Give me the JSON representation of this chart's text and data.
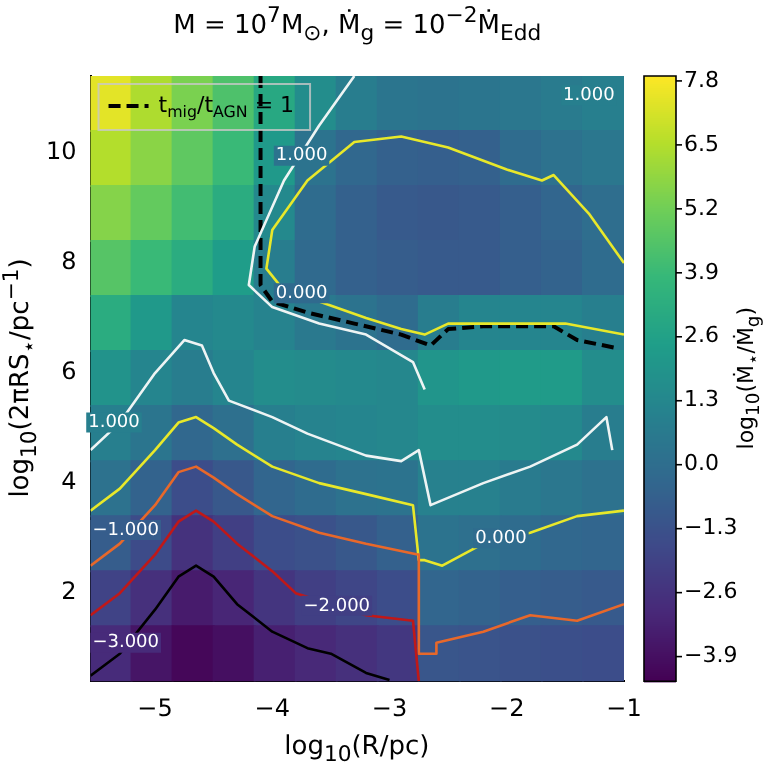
{
  "chart_data": {
    "type": "heatmap",
    "title": "M = 10$^{7}$M$_{⊙}$, Ṁ$_{g}$ = 10$^{−2}$Ṁ$_{Edd}$",
    "xlabel": "log$_{10}$(R/pc)",
    "ylabel": "log$_{10}$(2πRS$_{⋆}$/pc$^{−1}$)",
    "clabel": "log$_{10}$(Ṁ$_{⋆}$/Ṁ$_{g}$)",
    "x": [
      -5.375,
      -5.025,
      -4.675,
      -4.325,
      -3.975,
      -3.625,
      -3.275,
      -2.925,
      -2.575,
      -2.225,
      -1.875,
      -1.525,
      -1.175
    ],
    "y": [
      10.9,
      9.9,
      8.9,
      7.9,
      6.9,
      5.9,
      4.9,
      3.9,
      2.9,
      1.9,
      0.9
    ],
    "cells": [
      [
        7.4,
        6.4,
        5.4,
        4.4,
        3.0,
        1.6,
        0.8,
        0.4,
        0.3,
        0.4,
        0.5,
        0.7,
        0.9
      ],
      [
        6.5,
        5.7,
        4.8,
        3.9,
        2.2,
        0.3,
        -0.3,
        -0.6,
        -0.7,
        -0.6,
        -0.1,
        0.2,
        0.5
      ],
      [
        5.6,
        4.9,
        4.1,
        3.2,
        1.4,
        -0.1,
        -0.6,
        -0.9,
        -1.0,
        -0.9,
        -0.7,
        -0.4,
        0.0
      ],
      [
        4.6,
        3.9,
        3.2,
        2.4,
        0.8,
        -0.2,
        -0.6,
        -0.8,
        -0.9,
        -0.9,
        -0.7,
        -0.5,
        -0.1
      ],
      [
        3.2,
        2.2,
        1.2,
        1.4,
        1.1,
        0.6,
        0.3,
        -0.1,
        0.8,
        1.2,
        1.2,
        1.2,
        0.9
      ],
      [
        1.9,
        1.2,
        0.8,
        1.2,
        1.6,
        1.5,
        1.4,
        1.3,
        2.0,
        2.2,
        2.3,
        2.3,
        1.6
      ],
      [
        0.9,
        0.4,
        -0.3,
        0.1,
        0.9,
        1.1,
        1.2,
        1.3,
        1.6,
        1.6,
        1.5,
        1.4,
        0.8
      ],
      [
        0.2,
        -0.5,
        -1.5,
        -1.0,
        -0.4,
        -0.1,
        0.2,
        0.3,
        1.0,
        1.0,
        0.7,
        0.5,
        0.2
      ],
      [
        -0.8,
        -1.6,
        -2.6,
        -2.1,
        -1.5,
        -1.3,
        -1.0,
        -0.6,
        0.3,
        0.1,
        -0.1,
        -0.3,
        -0.4
      ],
      [
        -1.9,
        -2.7,
        -3.5,
        -3.1,
        -2.5,
        -2.1,
        -1.8,
        -1.5,
        -0.4,
        -0.5,
        -0.7,
        -0.8,
        -0.9
      ],
      [
        -2.9,
        -3.7,
        -4.2,
        -3.9,
        -3.3,
        -3.0,
        -2.7,
        -2.4,
        -1.1,
        -1.2,
        -1.3,
        -1.4,
        -1.5
      ]
    ],
    "clim": [
      -4.4,
      7.9
    ],
    "cticks": [
      7.8,
      6.5,
      5.2,
      3.9,
      2.6,
      1.3,
      {
        "value": 0,
        "label": "0.0"
      },
      -1.3,
      -2.6,
      -3.9
    ],
    "xlim": [
      -5.55,
      -1
    ],
    "xticks": [
      -5,
      -4,
      -3,
      -2,
      -1
    ],
    "ylim": [
      0.4,
      11.4
    ],
    "yticks": [
      2,
      4,
      6,
      8,
      10
    ],
    "series": [
      {
        "type": "line",
        "color": "#000000",
        "x": [
          -5.55,
          -5.3,
          -5.0,
          -4.8,
          -4.65,
          -4.5,
          -4.3,
          -4.0,
          -3.7,
          -3.5,
          -3.2,
          -3.0
        ],
        "values": [
          0.5,
          0.9,
          1.7,
          2.3,
          2.5,
          2.3,
          1.8,
          1.3,
          1.0,
          0.9,
          0.55,
          0.42
        ]
      },
      {
        "type": "line",
        "color": "#c01818",
        "x": [
          -5.55,
          -5.3,
          -5.0,
          -4.8,
          -4.65,
          -4.5,
          -4.3,
          -4.0,
          -3.8,
          -3.2,
          -2.8,
          -2.75
        ],
        "values": [
          1.6,
          2.0,
          2.7,
          3.3,
          3.5,
          3.3,
          2.9,
          2.4,
          2.0,
          1.6,
          1.5,
          0.4
        ]
      },
      {
        "type": "line",
        "color": "#e8682a",
        "x": [
          -5.55,
          -5.3,
          -5.0,
          -4.8,
          -4.65,
          -4.5,
          -4.3,
          -4.0,
          -3.6,
          -3.2,
          -2.75,
          -2.75,
          -2.6,
          -2.6,
          -2.2,
          -1.8,
          -1.4,
          -1.0
        ],
        "values": [
          2.5,
          2.9,
          3.6,
          4.2,
          4.3,
          4.1,
          3.8,
          3.4,
          3.1,
          2.9,
          2.7,
          0.9,
          0.9,
          1.1,
          1.3,
          1.6,
          1.5,
          1.8
        ]
      },
      {
        "type": "line",
        "color": "#e8e82a",
        "x": [
          -5.55,
          -5.3,
          -5.0,
          -4.8,
          -4.65,
          -4.5,
          -4.3,
          -4.0,
          -3.6,
          -3.2,
          -2.8,
          -2.75,
          -2.7,
          -2.55,
          -2.2,
          -1.8,
          -1.4,
          -1.0
        ],
        "values": [
          3.5,
          3.9,
          4.6,
          5.1,
          5.2,
          5.0,
          4.7,
          4.3,
          4.0,
          3.8,
          3.6,
          2.6,
          2.6,
          2.5,
          2.9,
          3.1,
          3.4,
          3.5
        ]
      },
      {
        "type": "line",
        "color": "#eef4f4",
        "x": [
          -5.55,
          -5.3,
          -5.0,
          -4.75,
          -4.6,
          -4.5,
          -4.37,
          -4.0,
          -3.7,
          -3.2,
          -2.9,
          -2.75,
          -2.65,
          -2.2,
          -1.8,
          -1.4,
          -1.15,
          -1.1
        ],
        "values": [
          4.6,
          5.1,
          6.0,
          6.6,
          6.5,
          6.0,
          5.5,
          5.2,
          4.9,
          4.5,
          4.4,
          4.6,
          3.6,
          4.0,
          4.3,
          4.7,
          5.2,
          4.6
        ]
      },
      {
        "type": "line",
        "color": "#eef4f4",
        "x": [
          -3.3,
          -3.6,
          -3.9,
          -4.15,
          -4.2,
          -4.0,
          -3.6,
          -3.2,
          -2.8,
          -2.7
        ],
        "values": [
          11.4,
          10.5,
          9.5,
          8.3,
          7.6,
          7.2,
          6.9,
          6.7,
          6.2,
          5.7
        ]
      },
      {
        "type": "line",
        "color": "#e8e82a",
        "x": [
          -1.0,
          -1.3,
          -1.6,
          -1.7,
          -2.0,
          -2.5,
          -2.9,
          -3.3,
          -3.7,
          -4.0,
          -4.05,
          -3.9,
          -3.6,
          -3.2,
          -2.9,
          -2.7,
          -2.5,
          -2.0,
          -1.5,
          -1.0
        ],
        "values": [
          8.0,
          8.9,
          9.6,
          9.5,
          9.7,
          10.1,
          10.3,
          10.2,
          9.5,
          8.6,
          7.9,
          7.5,
          7.3,
          7.0,
          6.8,
          6.7,
          6.9,
          6.9,
          6.9,
          6.7
        ]
      },
      {
        "type": "line",
        "color": "#000000",
        "line_style": "dashed",
        "name": "t$_{mig}$/t$_{AGN}$ = 1",
        "x": [
          -4.1,
          -4.1,
          -4.0,
          -3.7,
          -3.3,
          -2.9,
          -2.65,
          -2.5,
          -2.2,
          -1.6,
          -1.4,
          -1.05
        ],
        "values": [
          11.4,
          7.6,
          7.3,
          7.1,
          6.9,
          6.7,
          6.5,
          6.8,
          6.85,
          6.85,
          6.6,
          6.45
        ]
      }
    ],
    "legend": "top left",
    "annotations": [
      {
        "text": "1.000",
        "x": -3.75,
        "y": 9.95
      },
      {
        "text": "1.000",
        "x": -1.3,
        "y": 11.05
      },
      {
        "text": "0.000",
        "x": -3.75,
        "y": 7.45
      },
      {
        "text": "1.000",
        "x": -5.35,
        "y": 5.1
      },
      {
        "text": "−1.000",
        "x": -5.25,
        "y": 3.15
      },
      {
        "text": "−2.000",
        "x": -3.45,
        "y": 1.77
      },
      {
        "text": "−3.000",
        "x": -5.25,
        "y": 1.1
      },
      {
        "text": "0.000",
        "x": -2.05,
        "y": 3.0
      }
    ]
  }
}
